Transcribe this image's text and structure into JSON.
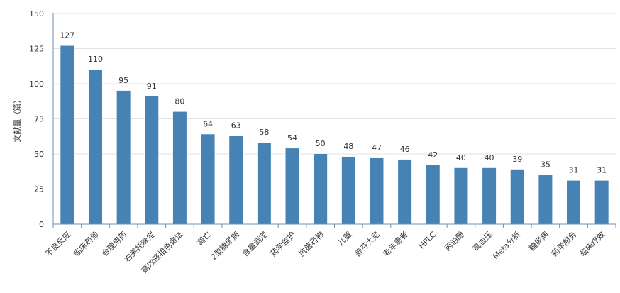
{
  "chart_data": {
    "type": "bar",
    "ylabel": "文献量（篇）",
    "ylim": [
      0,
      150
    ],
    "yticks": [
      0,
      25,
      50,
      75,
      100,
      125,
      150
    ],
    "grid": true,
    "bar_color": "#4682b4",
    "categories": [
      "不良反应",
      "临床药师",
      "合理用药",
      "右美托咪定",
      "高效液相色谱法",
      "凋亡",
      "2型糖尿病",
      "含量测定",
      "药学监护",
      "抗菌药物",
      "儿童",
      "舒芬太尼",
      "老年患者",
      "HPLC",
      "丙泊酚",
      "高血压",
      "Meta分析",
      "糖尿病",
      "药学服务",
      "临床疗效"
    ],
    "values": [
      127,
      110,
      95,
      91,
      80,
      64,
      63,
      58,
      54,
      50,
      48,
      47,
      46,
      42,
      40,
      40,
      39,
      35,
      31,
      31
    ]
  }
}
